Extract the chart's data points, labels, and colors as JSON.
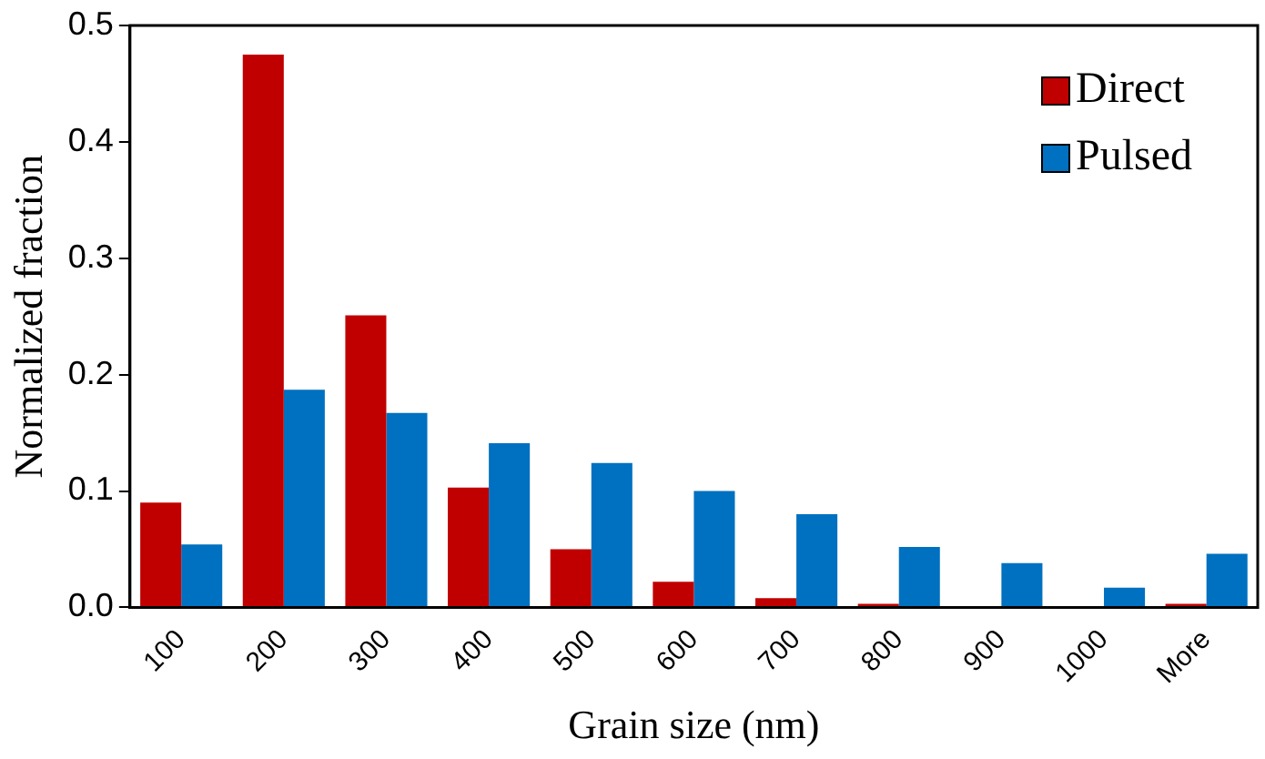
{
  "chart_data": {
    "type": "bar",
    "xlabel": "Grain size (nm)",
    "ylabel": "Normalized fraction",
    "categories": [
      "100",
      "200",
      "300",
      "400",
      "500",
      "600",
      "700",
      "800",
      "900",
      "1000",
      "More"
    ],
    "series": [
      {
        "name": "Direct",
        "color": "#c00000",
        "values": [
          0.09,
          0.475,
          0.251,
          0.103,
          0.05,
          0.022,
          0.008,
          0.003,
          null,
          null,
          0.003
        ]
      },
      {
        "name": "Pulsed",
        "color": "#0070c0",
        "values": [
          0.054,
          0.187,
          0.167,
          0.141,
          0.124,
          0.1,
          0.08,
          0.052,
          0.038,
          0.017,
          0.046
        ]
      }
    ],
    "ylim": [
      0,
      0.5
    ],
    "yticks": [
      {
        "value": 0,
        "label": "0.0"
      },
      {
        "value": 0.1,
        "label": "0.1"
      },
      {
        "value": 0.2,
        "label": "0.2"
      },
      {
        "value": 0.3,
        "label": "0.3"
      },
      {
        "value": 0.4,
        "label": "0.4"
      },
      {
        "value": 0.5,
        "label": "0.5"
      }
    ],
    "grid": false,
    "legend": "top right"
  }
}
